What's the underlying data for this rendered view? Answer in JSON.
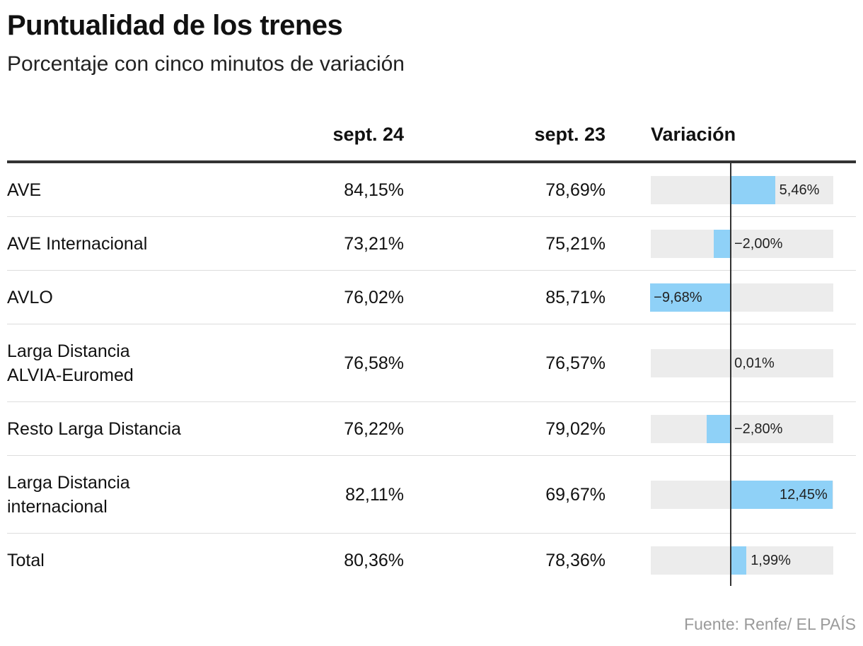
{
  "title": "Puntualidad de los trenes",
  "subtitle": "Porcentaje con cinco minutos de variación",
  "source": "Fuente: Renfe/ EL PAÍS",
  "columns": {
    "current": "sept. 24",
    "previous": "sept. 23",
    "change": "Variación"
  },
  "colors": {
    "bar": "#8fd1f7",
    "track": "#ececec",
    "zero_line": "#333333"
  },
  "chart_data": {
    "type": "table",
    "title": "Puntualidad de los trenes",
    "subtitle": "Porcentaje con cinco minutos de variación",
    "columns": [
      "sept. 24",
      "sept. 23",
      "Variación"
    ],
    "change_axis_range": [
      -9.68,
      12.45
    ],
    "rows": [
      {
        "label_lines": [
          "AVE"
        ],
        "sept24": "84,15%",
        "sept23": "78,69%",
        "variacion": 5.46,
        "variacion_label": "5,46%"
      },
      {
        "label_lines": [
          "AVE Internacional"
        ],
        "sept24": "73,21%",
        "sept23": "75,21%",
        "variacion": -2.0,
        "variacion_label": "−2,00%"
      },
      {
        "label_lines": [
          "AVLO"
        ],
        "sept24": "76,02%",
        "sept23": "85,71%",
        "variacion": -9.68,
        "variacion_label": "−9,68%"
      },
      {
        "label_lines": [
          "Larga Distancia",
          "ALVIA-Euromed"
        ],
        "sept24": "76,58%",
        "sept23": "76,57%",
        "variacion": 0.01,
        "variacion_label": "0,01%"
      },
      {
        "label_lines": [
          "Resto Larga Distancia"
        ],
        "sept24": "76,22%",
        "sept23": "79,02%",
        "variacion": -2.8,
        "variacion_label": "−2,80%"
      },
      {
        "label_lines": [
          "Larga Distancia",
          "internacional"
        ],
        "sept24": "82,11%",
        "sept23": "69,67%",
        "variacion": 12.45,
        "variacion_label": "12,45%"
      },
      {
        "label_lines": [
          "Total"
        ],
        "sept24": "80,36%",
        "sept23": "78,36%",
        "variacion": 1.99,
        "variacion_label": "1,99%"
      }
    ]
  }
}
